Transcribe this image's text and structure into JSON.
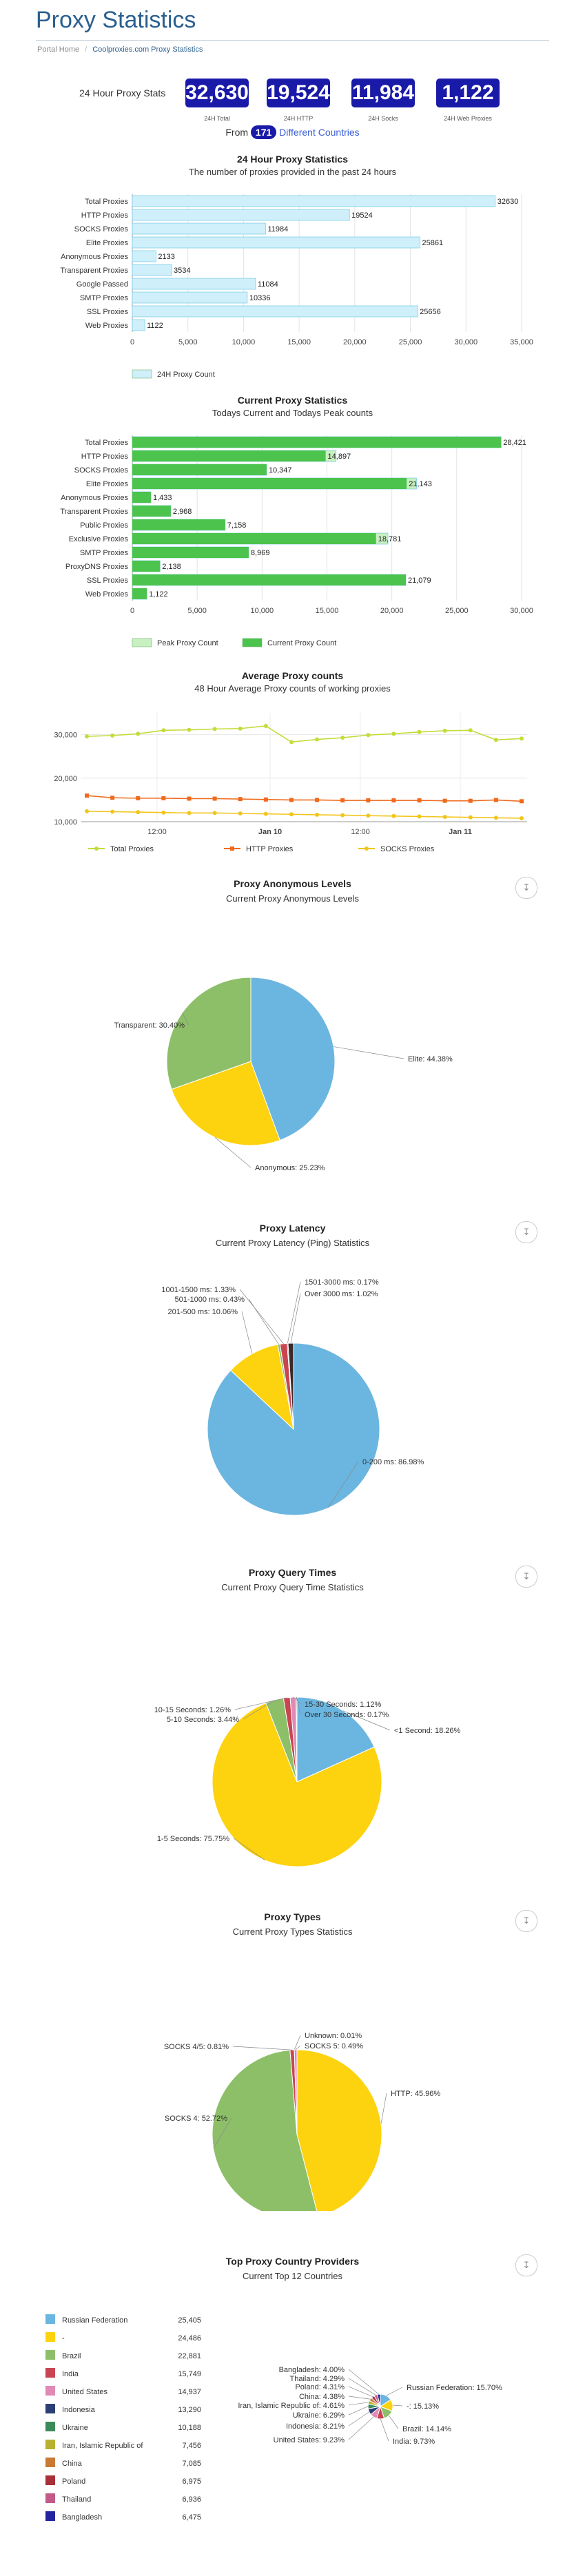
{
  "page": {
    "title": "Proxy Statistics",
    "breadcrumb": [
      "Portal Home",
      "Coolproxies.com Proxy Statistics"
    ]
  },
  "summary": {
    "label": "24 Hour Proxy Stats",
    "stats": [
      {
        "value": "32,630",
        "caption": "24H Total"
      },
      {
        "value": "19,524",
        "caption": "24H HTTP"
      },
      {
        "value": "11,984",
        "caption": "24H Socks"
      },
      {
        "value": "1,122",
        "caption": "24H Web Proxies"
      }
    ],
    "from_prefix": "From",
    "country_count": "171",
    "from_suffix": "Different Countries"
  },
  "chart_data": [
    {
      "type": "bar",
      "title": "24 Hour Proxy Statistics",
      "subtitle": "The number of proxies provided in the past 24 hours",
      "categories": [
        "Total Proxies",
        "HTTP Proxies",
        "SOCKS Proxies",
        "Elite Proxies",
        "Anonymous Proxies",
        "Transparent Proxies",
        "Google Passed",
        "SMTP Proxies",
        "SSL Proxies",
        "Web Proxies"
      ],
      "series": [
        {
          "name": "24H Proxy Count",
          "color": "#cfeffa",
          "values": [
            32630,
            19524,
            11984,
            25861,
            2133,
            3534,
            11084,
            10336,
            25656,
            1122
          ]
        }
      ],
      "xlim": [
        0,
        35000
      ],
      "ticks": [
        "0",
        "5,000",
        "10,000",
        "15,000",
        "20,000",
        "25,000",
        "30,000",
        "35,000"
      ],
      "labels": [
        "32630",
        "19524",
        "11984",
        "25861",
        "2133",
        "3534",
        "11084",
        "10336",
        "25656",
        "1122"
      ]
    },
    {
      "type": "bar",
      "title": "Current Proxy Statistics",
      "subtitle": "Todays Current and Todays Peak counts",
      "categories": [
        "Total Proxies",
        "HTTP Proxies",
        "SOCKS Proxies",
        "Elite Proxies",
        "Anonymous Proxies",
        "Transparent Proxies",
        "Public Proxies",
        "Exclusive Proxies",
        "SMTP Proxies",
        "ProxyDNS Proxies",
        "SSL Proxies",
        "Web Proxies"
      ],
      "series": [
        {
          "name": "Peak Proxy Count",
          "color": "#c8f0c0",
          "values": [
            28421,
            15700,
            10347,
            21900,
            1433,
            2968,
            7158,
            19700,
            8969,
            2138,
            21079,
            1122
          ]
        },
        {
          "name": "Current Proxy Count",
          "color": "#4cc34c",
          "values": [
            28421,
            14897,
            10347,
            21143,
            1433,
            2968,
            7158,
            18781,
            8969,
            2138,
            21079,
            1122
          ]
        }
      ],
      "xlim": [
        0,
        30000
      ],
      "ticks": [
        "0",
        "5,000",
        "10,000",
        "15,000",
        "20,000",
        "25,000",
        "30,000"
      ],
      "labels": [
        "28,421",
        "14,897",
        "10,347",
        "21,143",
        "1,433",
        "2,968",
        "7,158",
        "18,781",
        "8,969",
        "2,138",
        "21,079",
        "1,122"
      ]
    },
    {
      "type": "line",
      "title": "Average Proxy counts",
      "subtitle": "48 Hour Average Proxy counts of working proxies",
      "ylim": [
        10000,
        35000
      ],
      "yticks": [
        "10,000",
        "20,000",
        "30,000"
      ],
      "xticks": [
        "12:00",
        "Jan 10",
        "12:00",
        "Jan 11"
      ],
      "series": [
        {
          "name": "Total Proxies",
          "color": "#c5db3a",
          "values": [
            29600,
            29800,
            30200,
            31000,
            31100,
            31300,
            31400,
            32000,
            28300,
            28900,
            29300,
            29900,
            30200,
            30600,
            30900,
            31000,
            28800,
            29100
          ]
        },
        {
          "name": "HTTP Proxies",
          "color": "#ef6a1c",
          "values": [
            16000,
            15500,
            15400,
            15400,
            15300,
            15300,
            15200,
            15100,
            15000,
            15000,
            14900,
            14900,
            14900,
            14900,
            14800,
            14800,
            15000,
            14700
          ]
        },
        {
          "name": "SOCKS Proxies",
          "color": "#f2c51b",
          "values": [
            12400,
            12300,
            12200,
            12100,
            12000,
            12000,
            11900,
            11800,
            11700,
            11600,
            11500,
            11400,
            11300,
            11200,
            11100,
            11000,
            10900,
            10800
          ]
        }
      ]
    },
    {
      "type": "pie",
      "title": "Proxy Anonymous Levels",
      "subtitle": "Current Proxy Anonymous Levels",
      "slices": [
        {
          "label": "Elite: 44.38%",
          "value": 44.38,
          "color": "#6bb6e0"
        },
        {
          "label": "Anonymous: 25.23%",
          "value": 25.23,
          "color": "#fdd20f"
        },
        {
          "label": "Transparent: 30.40%",
          "value": 30.4,
          "color": "#8dbf68"
        }
      ]
    },
    {
      "type": "pie",
      "title": "Proxy Latency",
      "subtitle": "Current Proxy Latency (Ping) Statistics",
      "slices": [
        {
          "label": "0-200 ms: 86.98%",
          "value": 86.98,
          "color": "#6bb6e0"
        },
        {
          "label": "201-500 ms: 10.06%",
          "value": 10.06,
          "color": "#fdd20f"
        },
        {
          "label": "501-1000 ms: 0.43%",
          "value": 0.43,
          "color": "#8dbf68"
        },
        {
          "label": "1001-1500 ms: 1.33%",
          "value": 1.33,
          "color": "#c94552"
        },
        {
          "label": "1501-3000 ms: 0.17%",
          "value": 0.17,
          "color": "#2c3f75"
        },
        {
          "label": "Over 3000 ms: 1.02%",
          "value": 1.02,
          "color": "#3c2a28"
        }
      ]
    },
    {
      "type": "pie",
      "title": "Proxy Query Times",
      "subtitle": "Current Proxy Query Time Statistics",
      "slices": [
        {
          "label": "<1 Second: 18.26%",
          "value": 18.26,
          "color": "#6bb6e0"
        },
        {
          "label": "1-5 Seconds: 75.75%",
          "value": 75.75,
          "color": "#fdd20f"
        },
        {
          "label": "5-10 Seconds: 3.44%",
          "value": 3.44,
          "color": "#8dbf68"
        },
        {
          "label": "10-15 Seconds: 1.26%",
          "value": 1.26,
          "color": "#c94552"
        },
        {
          "label": "15-30 Seconds: 1.12%",
          "value": 1.12,
          "color": "#e08ab5"
        },
        {
          "label": "Over 30 Seconds: 0.17%",
          "value": 0.17,
          "color": "#2c3f75"
        }
      ]
    },
    {
      "type": "pie",
      "title": "Proxy Types",
      "subtitle": "Current Proxy Types Statistics",
      "slices": [
        {
          "label": "HTTP: 45.96%",
          "value": 45.96,
          "color": "#fdd20f"
        },
        {
          "label": "SOCKS 4: 52.72%",
          "value": 52.72,
          "color": "#8dbf68"
        },
        {
          "label": "SOCKS 4/5: 0.81%",
          "value": 0.81,
          "color": "#c94552"
        },
        {
          "label": "Unknown: 0.01%",
          "value": 0.01,
          "color": "#2c3f75"
        },
        {
          "label": "SOCKS 5: 0.49%",
          "value": 0.49,
          "color": "#e08ab5"
        }
      ]
    },
    {
      "type": "pie",
      "title": "Top Proxy Country Providers",
      "subtitle": "Current Top 12 Countries",
      "legend": [
        {
          "name": "Russian Federation",
          "value": "25,405",
          "color": "#6bb6e0"
        },
        {
          "name": "-",
          "value": "24,486",
          "color": "#fdd20f"
        },
        {
          "name": "Brazil",
          "value": "22,881",
          "color": "#8dbf68"
        },
        {
          "name": "India",
          "value": "15,749",
          "color": "#c94552"
        },
        {
          "name": "United States",
          "value": "14,937",
          "color": "#e08ab5"
        },
        {
          "name": "Indonesia",
          "value": "13,290",
          "color": "#2c3f75"
        },
        {
          "name": "Ukraine",
          "value": "10,188",
          "color": "#3c8a5a"
        },
        {
          "name": "Iran, Islamic Republic of",
          "value": "7,456",
          "color": "#b7b030"
        },
        {
          "name": "China",
          "value": "7,085",
          "color": "#c97a35"
        },
        {
          "name": "Poland",
          "value": "6,975",
          "color": "#a8303a"
        },
        {
          "name": "Thailand",
          "value": "6,936",
          "color": "#c25a8a"
        },
        {
          "name": "Bangladesh",
          "value": "6,475",
          "color": "#2424a0"
        }
      ],
      "slices": [
        {
          "label": "Russian Federation: 15.70%",
          "value": 15.7,
          "color": "#6bb6e0"
        },
        {
          "label": "-: 15.13%",
          "value": 15.13,
          "color": "#fdd20f"
        },
        {
          "label": "Brazil: 14.14%",
          "value": 14.14,
          "color": "#8dbf68"
        },
        {
          "label": "India: 9.73%",
          "value": 9.73,
          "color": "#c94552"
        },
        {
          "label": "United States: 9.23%",
          "value": 9.23,
          "color": "#e08ab5"
        },
        {
          "label": "Indonesia: 8.21%",
          "value": 8.21,
          "color": "#2c3f75"
        },
        {
          "label": "Ukraine: 6.29%",
          "value": 6.29,
          "color": "#3c8a5a"
        },
        {
          "label": "Iran, Islamic Republic of: 4.61%",
          "value": 4.61,
          "color": "#b7b030"
        },
        {
          "label": "China: 4.38%",
          "value": 4.38,
          "color": "#c97a35"
        },
        {
          "label": "Poland: 4.31%",
          "value": 4.31,
          "color": "#a8303a"
        },
        {
          "label": "Thailand: 4.29%",
          "value": 4.29,
          "color": "#c25a8a"
        },
        {
          "label": "Bangladesh: 4.00%",
          "value": 4.0,
          "color": "#2424a0"
        }
      ]
    }
  ]
}
